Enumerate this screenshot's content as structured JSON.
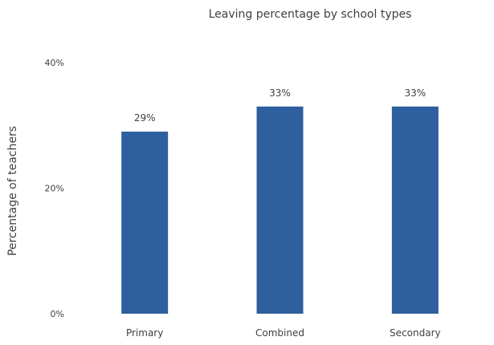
{
  "chart_data": {
    "type": "bar",
    "title": "Leaving percentage by school types",
    "xlabel": "",
    "ylabel": "Percentage of teachers",
    "categories": [
      "Primary",
      "Combined",
      "Secondary"
    ],
    "values": [
      29,
      33,
      33
    ],
    "data_labels": [
      "29%",
      "33%",
      "33%"
    ],
    "ylim": [
      0,
      40
    ],
    "yticks": [
      0,
      20,
      40
    ],
    "ytick_labels": [
      "0%",
      "20%",
      "40%"
    ],
    "grid": false,
    "legend": "none",
    "bar_color": "#2e5f9e"
  }
}
